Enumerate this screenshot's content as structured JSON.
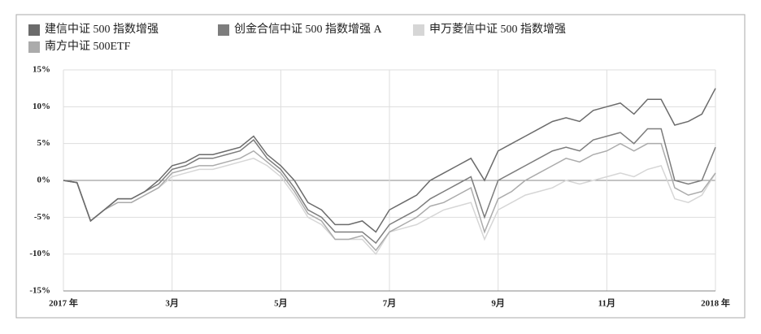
{
  "chart_data": {
    "type": "line",
    "x": [
      0,
      0.25,
      0.5,
      0.75,
      1,
      1.25,
      1.5,
      1.75,
      2,
      2.25,
      2.5,
      2.75,
      3,
      3.25,
      3.5,
      3.75,
      4,
      4.25,
      4.5,
      4.75,
      5,
      5.25,
      5.5,
      5.75,
      6,
      6.25,
      6.5,
      6.75,
      7,
      7.25,
      7.5,
      7.75,
      8,
      8.25,
      8.5,
      8.75,
      9,
      9.25,
      9.5,
      9.75,
      10,
      10.25,
      10.5,
      10.75,
      11,
      11.25,
      11.5,
      11.75,
      12
    ],
    "series": [
      {
        "name": "建信中证 500 指数增强",
        "color": "#6b6b6b",
        "values": [
          0,
          -0.3,
          -5.5,
          -4,
          -2.5,
          -2.5,
          -1.5,
          0,
          2,
          2.5,
          3.5,
          3.5,
          4,
          4.5,
          6,
          3.5,
          2,
          0,
          -3,
          -4,
          -6,
          -6,
          -5.5,
          -7,
          -4,
          -3,
          -2,
          0,
          1,
          2,
          3,
          0,
          4,
          5,
          6,
          7,
          8,
          8.5,
          8,
          9.5,
          10,
          10.5,
          9,
          11,
          11,
          7.5,
          8,
          9,
          12.5
        ]
      },
      {
        "name": "创金合信中证 500 指数增强 A",
        "color": "#7d7d7d",
        "values": [
          0,
          -0.3,
          -5.5,
          -4,
          -2.5,
          -2.5,
          -1.5,
          -0.5,
          1.5,
          2,
          3,
          3,
          3.5,
          4,
          5.5,
          3,
          1.5,
          -1,
          -4,
          -5,
          -7,
          -7,
          -7,
          -8.5,
          -6,
          -5,
          -4,
          -2.5,
          -1.5,
          -0.5,
          0.5,
          -5,
          0,
          1,
          2,
          3,
          4,
          4.5,
          4,
          5.5,
          6,
          6.5,
          5,
          7,
          7,
          0,
          -0.5,
          0,
          4.5
        ]
      },
      {
        "name": "申万菱信中证 500 指数增强",
        "color": "#d6d6d6",
        "values": [
          0,
          -0.3,
          -5.5,
          -4,
          -3,
          -3,
          -2,
          -1,
          0.5,
          1,
          1.5,
          1.5,
          2,
          2.5,
          3,
          2,
          0.5,
          -2,
          -5,
          -6,
          -8,
          -8,
          -8,
          -10,
          -7,
          -6.5,
          -6,
          -5,
          -4,
          -3.5,
          -3,
          -8,
          -4,
          -3,
          -2,
          -1.5,
          -1,
          0,
          -0.5,
          0,
          0.5,
          1,
          0.5,
          1.5,
          2,
          -2.5,
          -3,
          -2,
          1
        ]
      },
      {
        "name": "南方中证 500ETF",
        "color": "#ababab",
        "values": [
          0,
          -0.3,
          -5.5,
          -4,
          -3,
          -3,
          -2,
          -1,
          1,
          1.5,
          2,
          2,
          2.5,
          3,
          4,
          2.5,
          1,
          -1.5,
          -4.5,
          -5.5,
          -8,
          -8,
          -7.5,
          -9.5,
          -7,
          -6,
          -5,
          -3.5,
          -3,
          -2,
          -1,
          -7,
          -2.5,
          -1.5,
          0,
          1,
          2,
          3,
          2.5,
          3.5,
          4,
          5,
          4,
          5,
          5,
          -1,
          -2,
          -1.5,
          1
        ]
      }
    ],
    "xlim": [
      0,
      12
    ],
    "xticks": [
      {
        "value": 0,
        "label": "2017 年"
      },
      {
        "value": 2,
        "label": "3月"
      },
      {
        "value": 4,
        "label": "5月"
      },
      {
        "value": 6,
        "label": "7月"
      },
      {
        "value": 8,
        "label": "9月"
      },
      {
        "value": 10,
        "label": "11月"
      },
      {
        "value": 12,
        "label": "2018 年"
      }
    ],
    "ylim": [
      -15,
      15
    ],
    "yticks": [
      {
        "value": -15,
        "label": "-15%"
      },
      {
        "value": -10,
        "label": "-10%"
      },
      {
        "value": -5,
        "label": "-5%"
      },
      {
        "value": 0,
        "label": "0%"
      },
      {
        "value": 5,
        "label": "5%"
      },
      {
        "value": 10,
        "label": "10%"
      },
      {
        "value": 15,
        "label": "15%"
      }
    ],
    "grid": true
  }
}
